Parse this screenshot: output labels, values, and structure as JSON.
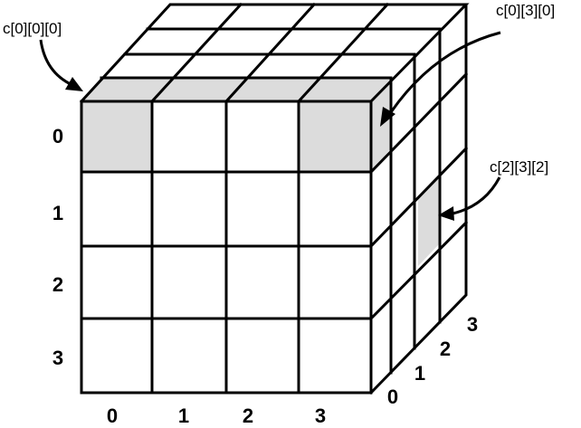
{
  "callouts": [
    {
      "id": "c000",
      "text": "c[0][0][0]"
    },
    {
      "id": "c030",
      "text": "c[0][3][0]"
    },
    {
      "id": "c232",
      "text": "c[2][3][2]"
    }
  ],
  "row_labels": [
    "0",
    "1",
    "2",
    "3"
  ],
  "column_labels": [
    "0",
    "1",
    "2",
    "3"
  ],
  "depth_labels": [
    "0",
    "1",
    "2",
    "3"
  ],
  "colors": {
    "highlight": "#dcdcdc",
    "line": "#000000",
    "background": "#ffffff"
  }
}
